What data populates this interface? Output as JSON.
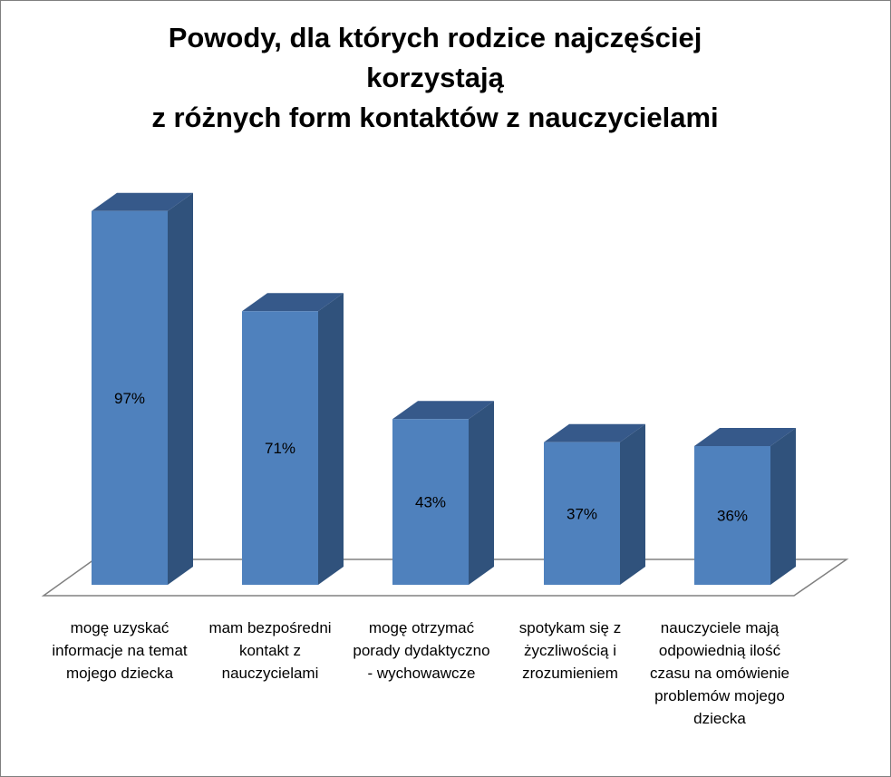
{
  "chart_data": {
    "type": "bar",
    "title": "Powody, dla których rodzice najczęściej korzystają z różnych form kontaktów z nauczycielami",
    "title_lines": [
      "Powody, dla których rodzice najczęściej",
      "korzystają",
      "z różnych form kontaktów z nauczycielami"
    ],
    "categories": [
      "mogę uzyskać informacje na temat mojego dziecka",
      "mam bezpośredni kontakt z nauczycielami",
      "mogę otrzymać porady dydaktyczno - wychowawcze",
      "spotykam się z życzliwością i zrozumieniem",
      "nauczyciele mają odpowiednią ilość czasu na omówienie problemów mojego dziecka"
    ],
    "values": [
      97,
      71,
      43,
      37,
      36
    ],
    "data_labels": [
      "97%",
      "71%",
      "43%",
      "37%",
      "36%"
    ],
    "ylim": [
      0,
      100
    ],
    "legend": "none",
    "grid": false,
    "style": "3d-column",
    "colors": {
      "bar_front": "#4f81bd",
      "bar_side": "#30527c",
      "bar_top": "#36598a",
      "floor_stroke": "#808080"
    }
  }
}
